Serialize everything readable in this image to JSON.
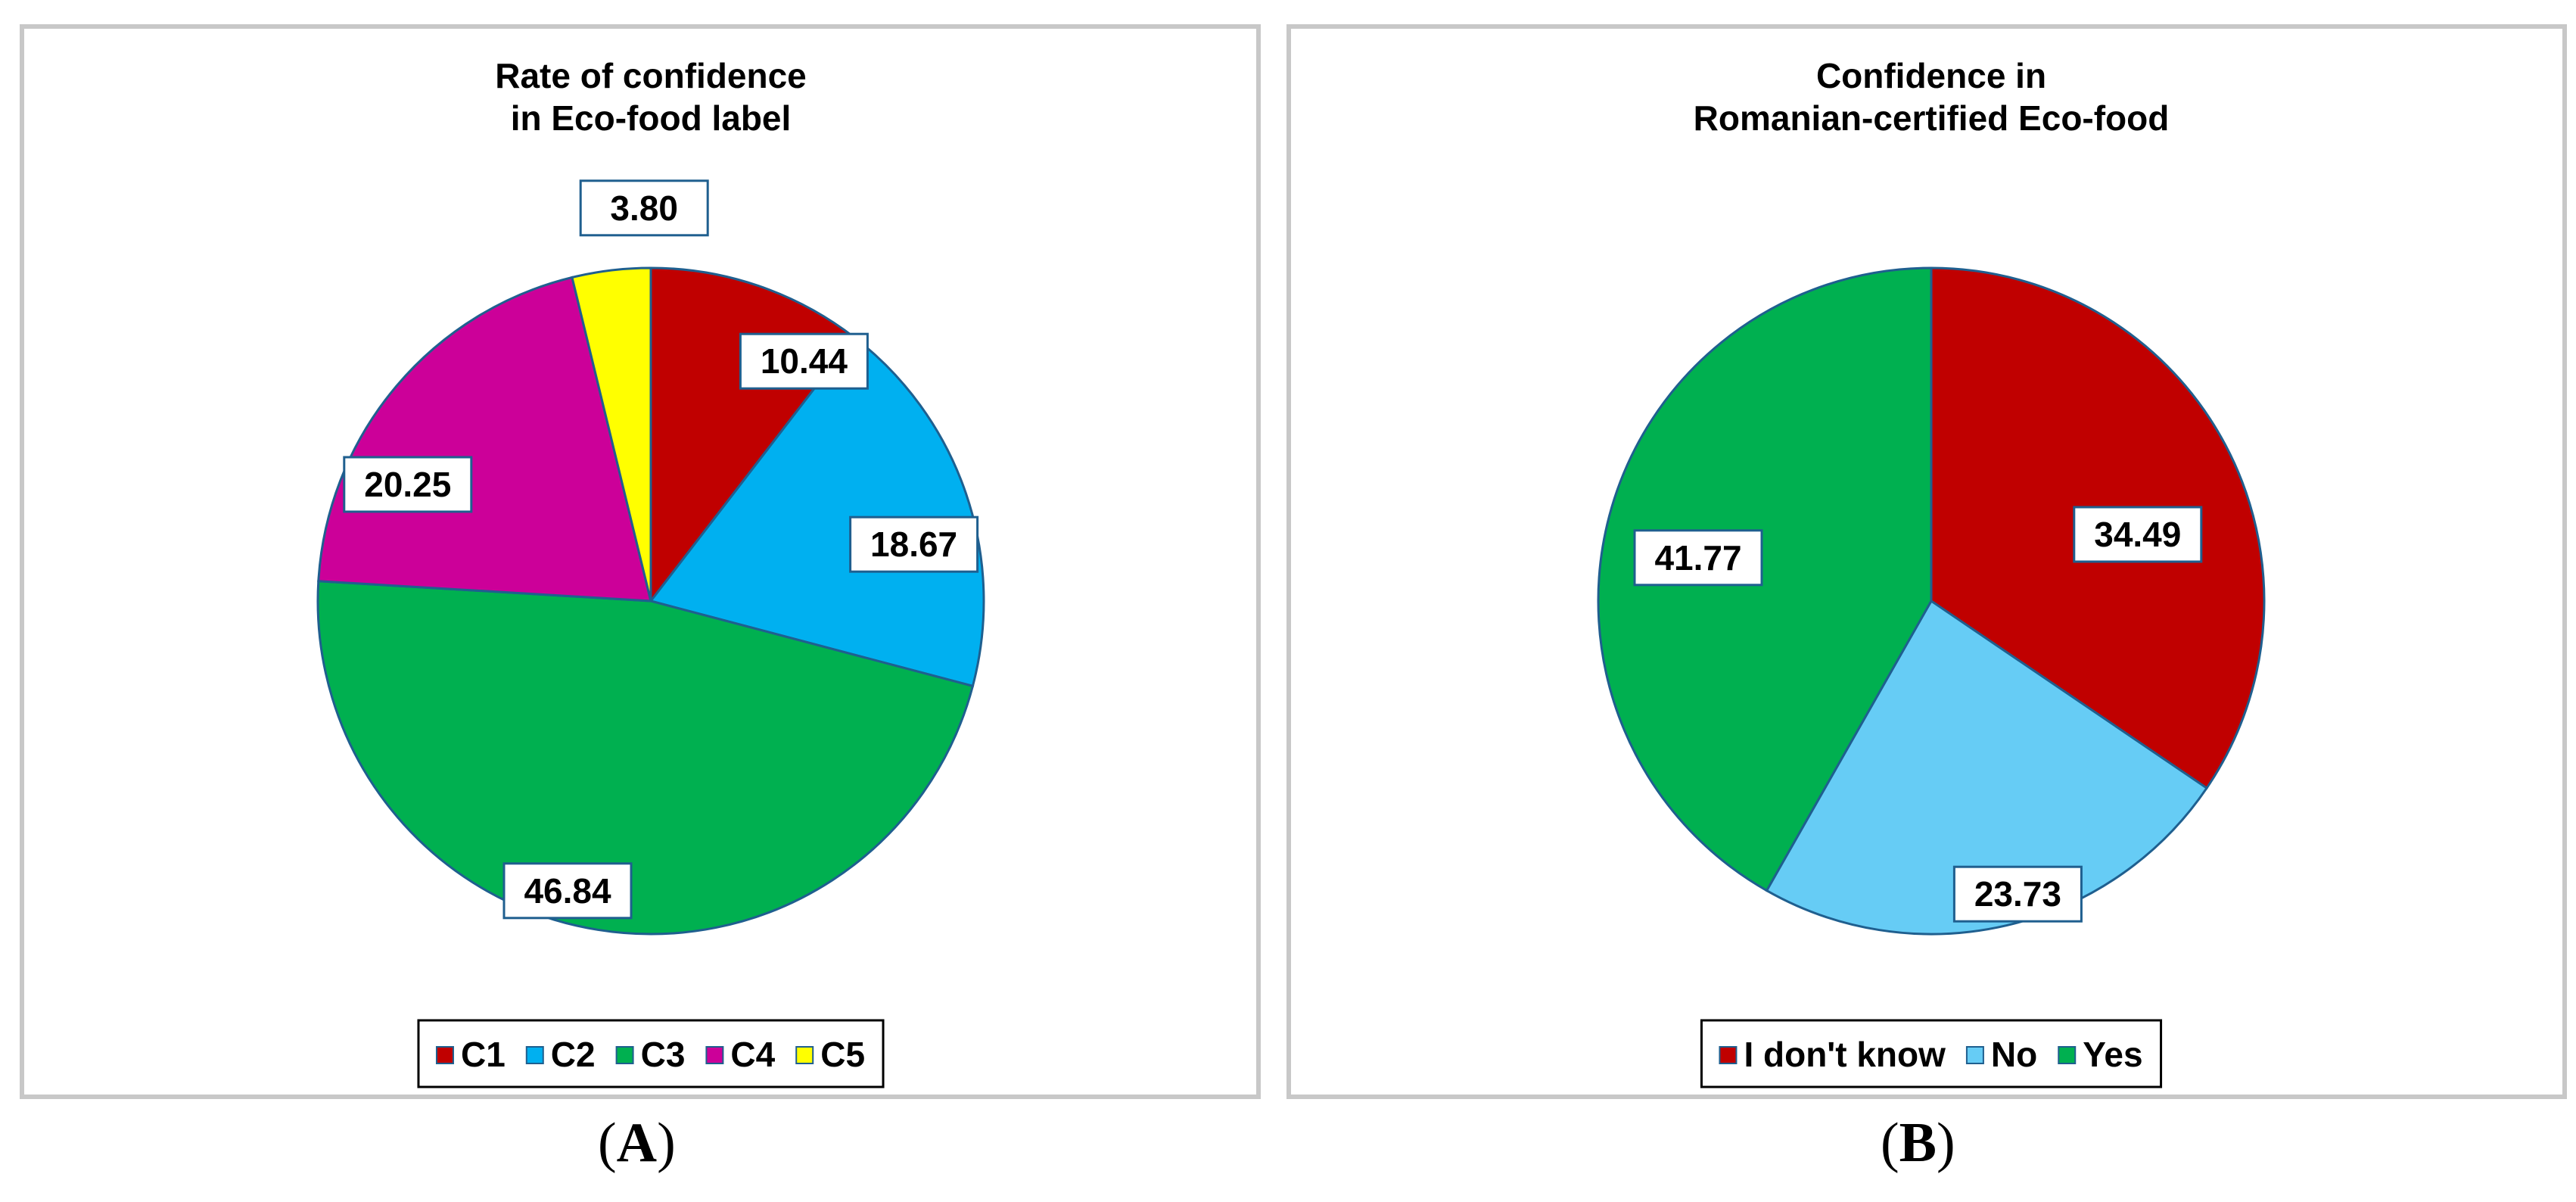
{
  "chart_data": [
    {
      "type": "pie",
      "title": [
        "Rate of confidence",
        "in Eco-food label"
      ],
      "legend_position": "bottom",
      "slices": [
        {
          "name": "C1",
          "value": 10.44,
          "label": "10.44",
          "color": "#c00000"
        },
        {
          "name": "C2",
          "value": 18.67,
          "label": "18.67",
          "color": "#00b0f0"
        },
        {
          "name": "C3",
          "value": 46.84,
          "label": "46.84",
          "color": "#00b050"
        },
        {
          "name": "C4",
          "value": 20.25,
          "label": "20.25",
          "color": "#cc0099"
        },
        {
          "name": "C5",
          "value": 3.8,
          "label": "3.80",
          "color": "#ffff00"
        }
      ]
    },
    {
      "type": "pie",
      "title": [
        "Confidence in",
        "Romanian-certified Eco-food"
      ],
      "legend_position": "bottom",
      "slices": [
        {
          "name": "I don't know",
          "value": 34.49,
          "label": "34.49",
          "color": "#c00000"
        },
        {
          "name": "No",
          "value": 23.73,
          "label": "23.73",
          "color": "#66ccf5"
        },
        {
          "name": "Yes",
          "value": 41.77,
          "label": "41.77",
          "color": "#00b050"
        }
      ]
    }
  ],
  "captions": {
    "a": {
      "open": "(",
      "letter": "A",
      "close": ")"
    },
    "b": {
      "open": "(",
      "letter": "B",
      "close": ")"
    }
  }
}
